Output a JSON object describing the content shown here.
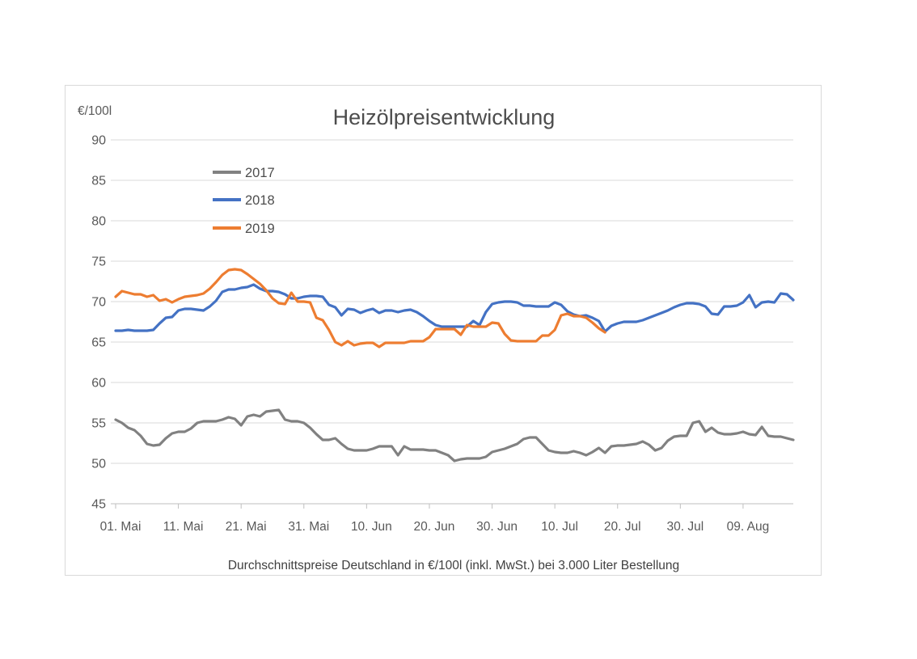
{
  "chart_data": {
    "type": "line",
    "title": "Heizölpreisentwicklung",
    "unit_label": "€/100l",
    "caption": "Durchschnittspreise Deutschland in €/100l (inkl. MwSt.) bei 3.000 Liter Bestellung",
    "ylim": [
      45,
      90
    ],
    "ytick_step": 5,
    "ytick_labels": [
      "90",
      "85",
      "80",
      "75",
      "70",
      "65",
      "60",
      "55",
      "50",
      "45"
    ],
    "x_tick_labels": [
      "01. Mai",
      "11. Mai",
      "21. Mai",
      "31. Mai",
      "10. Jun",
      "20. Jun",
      "30. Jun",
      "10. Jul",
      "20. Jul",
      "30. Jul",
      "09. Aug"
    ],
    "x_tick_days": [
      0,
      10,
      20,
      30,
      40,
      50,
      60,
      70,
      80,
      90,
      100
    ],
    "x_total_days": 108,
    "grid": "horizontal",
    "legend_position": "top-left-inside",
    "colors": {
      "grid": "#d9d9d9",
      "axis": "#bfbfbf",
      "tick_text": "#595959",
      "title_text": "#4d4d4d",
      "caption_text": "#404040",
      "series_2017": "#818181",
      "series_2018": "#4472c4",
      "series_2019": "#ed7d31"
    },
    "series": [
      {
        "name": "2017",
        "color": "#818181",
        "start_day": 0,
        "values": [
          55.4,
          55.0,
          54.4,
          54.1,
          53.4,
          52.4,
          52.2,
          52.3,
          53.1,
          53.7,
          53.9,
          53.9,
          54.3,
          55.0,
          55.2,
          55.2,
          55.2,
          55.4,
          55.7,
          55.5,
          54.7,
          55.8,
          56.0,
          55.8,
          56.4,
          56.5,
          56.6,
          55.4,
          55.2,
          55.2,
          55.0,
          54.4,
          53.6,
          52.9,
          52.9,
          53.1,
          52.4,
          51.8,
          51.6,
          51.6,
          51.6,
          51.8,
          52.1,
          52.1,
          52.1,
          51.0,
          52.1,
          51.7,
          51.7,
          51.7,
          51.6,
          51.6,
          51.3,
          51.0,
          50.3,
          50.5,
          50.6,
          50.6,
          50.6,
          50.8,
          51.4,
          51.6,
          51.8,
          52.1,
          52.4,
          53.0,
          53.2,
          53.2,
          52.4,
          51.6,
          51.4,
          51.3,
          51.3,
          51.5,
          51.3,
          51.0,
          51.4,
          51.9,
          51.3,
          52.1,
          52.2,
          52.2,
          52.3,
          52.4,
          52.7,
          52.3,
          51.6,
          51.9,
          52.8,
          53.3,
          53.4,
          53.4,
          55.0,
          55.2,
          53.9,
          54.4,
          53.8,
          53.6,
          53.6,
          53.7,
          53.9,
          53.6,
          53.5,
          54.5,
          53.4,
          53.3,
          53.3,
          53.1,
          52.9
        ]
      },
      {
        "name": "2018",
        "color": "#4472c4",
        "start_day": 0,
        "values": [
          66.4,
          66.4,
          66.5,
          66.4,
          66.4,
          66.4,
          66.5,
          67.3,
          68.0,
          68.1,
          68.9,
          69.1,
          69.1,
          69.0,
          68.9,
          69.4,
          70.1,
          71.2,
          71.5,
          71.5,
          71.7,
          71.8,
          72.1,
          71.6,
          71.3,
          71.3,
          71.2,
          70.9,
          70.4,
          70.4,
          70.6,
          70.7,
          70.7,
          70.6,
          69.6,
          69.3,
          68.3,
          69.1,
          69.0,
          68.6,
          68.9,
          69.1,
          68.6,
          68.9,
          68.9,
          68.7,
          68.9,
          69.0,
          68.7,
          68.2,
          67.6,
          67.1,
          66.9,
          66.9,
          66.9,
          66.9,
          66.9,
          67.6,
          67.1,
          68.7,
          69.7,
          69.9,
          70.0,
          70.0,
          69.9,
          69.5,
          69.5,
          69.4,
          69.4,
          69.4,
          69.9,
          69.6,
          68.8,
          68.4,
          68.2,
          68.3,
          68.0,
          67.6,
          66.3,
          67.0,
          67.3,
          67.5,
          67.5,
          67.5,
          67.7,
          68.0,
          68.3,
          68.6,
          68.9,
          69.3,
          69.6,
          69.8,
          69.8,
          69.7,
          69.4,
          68.5,
          68.4,
          69.4,
          69.4,
          69.5,
          69.9,
          70.8,
          69.3,
          69.9,
          70.0,
          69.9,
          71.0,
          70.9,
          70.2
        ]
      },
      {
        "name": "2019",
        "color": "#ed7d31",
        "start_day": 0,
        "values": [
          70.6,
          71.3,
          71.1,
          70.9,
          70.9,
          70.6,
          70.8,
          70.1,
          70.3,
          69.9,
          70.3,
          70.6,
          70.7,
          70.8,
          71.0,
          71.6,
          72.4,
          73.3,
          73.9,
          74.0,
          73.9,
          73.4,
          72.8,
          72.2,
          71.4,
          70.4,
          69.8,
          69.7,
          71.1,
          70.0,
          70.0,
          69.9,
          68.0,
          67.7,
          66.5,
          65.0,
          64.6,
          65.1,
          64.6,
          64.8,
          64.9,
          64.9,
          64.4,
          64.9,
          64.9,
          64.9,
          64.9,
          65.1,
          65.1,
          65.1,
          65.6,
          66.6,
          66.6,
          66.6,
          66.6,
          65.9,
          67.1,
          66.9,
          66.9,
          66.9,
          67.4,
          67.3,
          66.0,
          65.2,
          65.1,
          65.1,
          65.1,
          65.1,
          65.8,
          65.8,
          66.5,
          68.3,
          68.5,
          68.2,
          68.2,
          68.0,
          67.4,
          66.7,
          66.2
        ]
      }
    ]
  }
}
